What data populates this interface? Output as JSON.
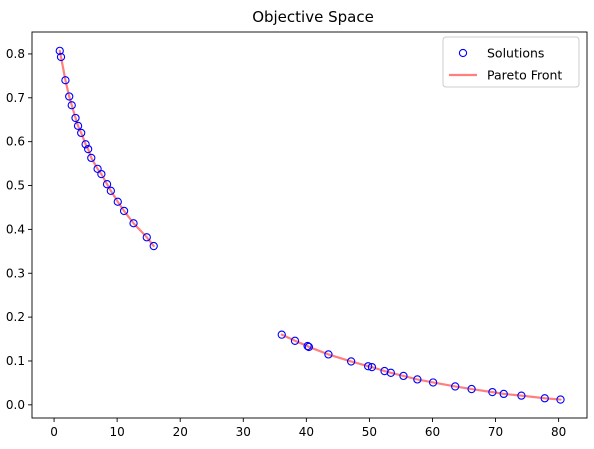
{
  "chart_data": {
    "type": "scatter",
    "title": "Objective Space",
    "xlabel": "",
    "ylabel": "",
    "xlim": [
      -3.5,
      84.5
    ],
    "ylim": [
      -0.03,
      0.85
    ],
    "xticks": [
      0,
      10,
      20,
      30,
      40,
      50,
      60,
      70,
      80
    ],
    "yticks": [
      0.0,
      0.1,
      0.2,
      0.3,
      0.4,
      0.5,
      0.6,
      0.7,
      0.8
    ],
    "xtick_labels": [
      "0",
      "10",
      "20",
      "30",
      "40",
      "50",
      "60",
      "70",
      "80"
    ],
    "ytick_labels": [
      "0.0",
      "0.1",
      "0.2",
      "0.3",
      "0.4",
      "0.5",
      "0.6",
      "0.7",
      "0.8"
    ],
    "grid": false,
    "legend_position": "top-right",
    "legend": [
      {
        "label": "Solutions",
        "kind": "marker",
        "color": "#0000ff"
      },
      {
        "label": "Pareto Front",
        "kind": "line",
        "color": "#ff7f7f"
      }
    ],
    "series": [
      {
        "name": "Solutions",
        "kind": "scatter",
        "color": "#0000ff",
        "x": [
          0.9,
          1.1,
          1.8,
          2.4,
          2.8,
          3.4,
          3.8,
          4.3,
          5.0,
          5.4,
          5.9,
          6.9,
          7.5,
          8.4,
          9.0,
          10.1,
          11.1,
          12.6,
          14.7,
          15.8,
          36.1,
          38.2,
          40.2,
          40.4,
          43.5,
          47.1,
          49.8,
          50.4,
          52.4,
          53.4,
          55.4,
          57.6,
          60.1,
          63.6,
          66.2,
          69.5,
          71.3,
          74.1,
          77.8,
          80.3
        ],
        "y": [
          0.807,
          0.793,
          0.74,
          0.703,
          0.683,
          0.654,
          0.636,
          0.62,
          0.594,
          0.583,
          0.563,
          0.538,
          0.526,
          0.503,
          0.488,
          0.463,
          0.442,
          0.414,
          0.382,
          0.362,
          0.16,
          0.146,
          0.134,
          0.132,
          0.115,
          0.099,
          0.088,
          0.086,
          0.077,
          0.073,
          0.066,
          0.058,
          0.051,
          0.042,
          0.036,
          0.029,
          0.025,
          0.021,
          0.015,
          0.012
        ]
      },
      {
        "name": "Pareto Front",
        "kind": "line",
        "color": "#ff7f7f",
        "x": [
          0.9,
          1.1,
          1.8,
          2.4,
          2.8,
          3.4,
          3.8,
          4.3,
          5.0,
          5.4,
          5.9,
          6.9,
          7.5,
          8.4,
          9.0,
          10.1,
          11.1,
          12.6,
          14.7,
          15.8
        ],
        "y": [
          0.807,
          0.793,
          0.74,
          0.703,
          0.683,
          0.654,
          0.636,
          0.62,
          0.594,
          0.583,
          0.563,
          0.538,
          0.526,
          0.503,
          0.488,
          0.463,
          0.442,
          0.414,
          0.382,
          0.362
        ]
      },
      {
        "name": "Pareto Front",
        "kind": "line",
        "color": "#ff7f7f",
        "x": [
          36.1,
          38.2,
          40.2,
          40.4,
          43.5,
          47.1,
          49.8,
          50.4,
          52.4,
          53.4,
          55.4,
          57.6,
          60.1,
          63.6,
          66.2,
          69.5,
          71.3,
          74.1,
          77.8,
          80.3
        ],
        "y": [
          0.16,
          0.146,
          0.134,
          0.132,
          0.115,
          0.099,
          0.088,
          0.086,
          0.077,
          0.073,
          0.066,
          0.058,
          0.051,
          0.042,
          0.036,
          0.029,
          0.025,
          0.021,
          0.015,
          0.012
        ]
      }
    ]
  }
}
